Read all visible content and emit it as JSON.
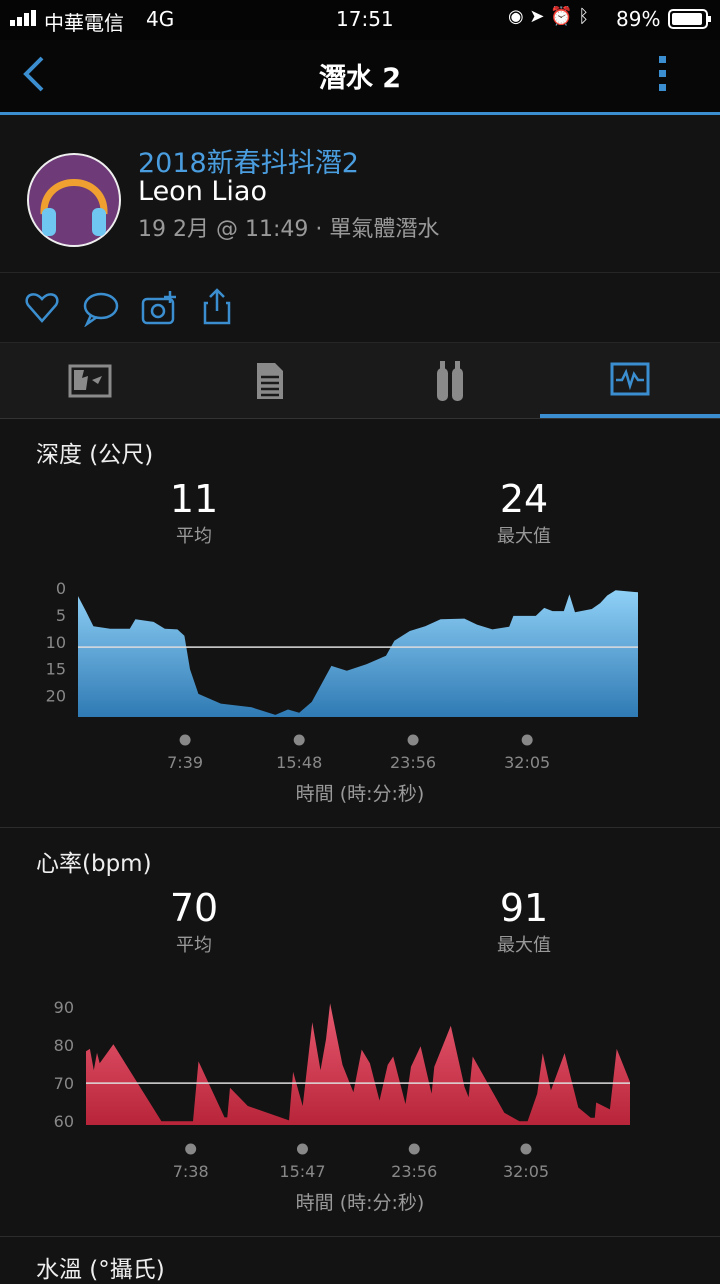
{
  "status_bar": {
    "carrier": "中華電信",
    "network": "4G",
    "time": "17:51",
    "battery": "89%"
  },
  "nav": {
    "title": "潛水 2",
    "back_icon": "chevron-left-icon",
    "menu_icon": "more-vertical-icon",
    "accent": "#3b8fd0"
  },
  "profile": {
    "activity_name": "2018新春抖抖潛2",
    "user_name": "Leon Liao",
    "meta": "19 2月 @ 11:49 · 單氣體潛水"
  },
  "actions": [
    "heart-icon",
    "comment-icon",
    "add-photo-icon",
    "share-icon"
  ],
  "tabs": [
    {
      "icon": "map-icon",
      "active": false
    },
    {
      "icon": "details-icon",
      "active": false
    },
    {
      "icon": "tanks-icon",
      "active": false
    },
    {
      "icon": "chart-icon",
      "active": true
    }
  ],
  "chart_data": [
    {
      "type": "area",
      "title": "深度 (公尺)",
      "xlabel": "時間 (時:分:秒)",
      "ylabel": "",
      "color": "#5aaee6",
      "stats": [
        {
          "value": "11",
          "label": "平均"
        },
        {
          "value": "24",
          "label": "最大值"
        }
      ],
      "average": 11,
      "y_inverted": true,
      "ylim": [
        0,
        24
      ],
      "yticks": [
        0,
        5,
        10,
        15,
        20
      ],
      "xlim": [
        "0:00",
        "40:00"
      ],
      "xticks": [
        "7:39",
        "15:48",
        "23:56",
        "32:05"
      ],
      "points": [
        [
          "0:00",
          1.5
        ],
        [
          "0:34",
          4.3
        ],
        [
          "1:06",
          7.1
        ],
        [
          "2:18",
          7.6
        ],
        [
          "3:42",
          7.6
        ],
        [
          "4:06",
          5.8
        ],
        [
          "5:24",
          6.3
        ],
        [
          "6:12",
          7.6
        ],
        [
          "7:06",
          7.7
        ],
        [
          "7:36",
          8.9
        ],
        [
          "8:00",
          15.1
        ],
        [
          "8:36",
          19.7
        ],
        [
          "10:12",
          21.5
        ],
        [
          "12:24",
          22.2
        ],
        [
          "14:06",
          23.6
        ],
        [
          "15:00",
          22.6
        ],
        [
          "15:48",
          23.2
        ],
        [
          "16:42",
          21.2
        ],
        [
          "18:06",
          14.5
        ],
        [
          "19:12",
          15.4
        ],
        [
          "20:36",
          14.2
        ],
        [
          "22:00",
          12.6
        ],
        [
          "22:36",
          9.8
        ],
        [
          "23:42",
          8.0
        ],
        [
          "24:48",
          7.1
        ],
        [
          "25:54",
          5.8
        ],
        [
          "27:36",
          5.7
        ],
        [
          "28:30",
          6.8
        ],
        [
          "29:36",
          7.7
        ],
        [
          "30:48",
          7.2
        ],
        [
          "31:06",
          5.2
        ],
        [
          "32:42",
          5.2
        ],
        [
          "33:18",
          3.7
        ],
        [
          "33:54",
          4.3
        ],
        [
          "34:42",
          4.3
        ],
        [
          "35:06",
          1.2
        ],
        [
          "35:30",
          4.5
        ],
        [
          "36:42",
          3.9
        ],
        [
          "37:18",
          2.8
        ],
        [
          "37:48",
          1.4
        ],
        [
          "38:24",
          0.4
        ],
        [
          "40:00",
          0.8
        ]
      ]
    },
    {
      "type": "area",
      "title": "心率(bpm)",
      "xlabel": "時間 (時:分:秒)",
      "ylabel": "",
      "color": "#d8334a",
      "stats": [
        {
          "value": "70",
          "label": "平均"
        },
        {
          "value": "91",
          "label": "最大值"
        }
      ],
      "average": 70,
      "y_inverted": false,
      "ylim": [
        59,
        90
      ],
      "yticks": [
        60,
        70,
        80,
        90
      ],
      "xlim": [
        "0:00",
        "39:40"
      ],
      "xticks": [
        "7:38",
        "15:47",
        "23:56",
        "32:05"
      ],
      "points": [
        [
          "0:00",
          78.4
        ],
        [
          "0:17",
          79
        ],
        [
          "0:34",
          73.4
        ],
        [
          "0:48",
          78
        ],
        [
          "1:00",
          75.2
        ],
        [
          "2:00",
          80.2
        ],
        [
          "5:30",
          60
        ],
        [
          "7:48",
          60
        ],
        [
          "8:12",
          75.7
        ],
        [
          "10:06",
          61
        ],
        [
          "10:18",
          61
        ],
        [
          "10:30",
          68.8
        ],
        [
          "11:48",
          64
        ],
        [
          "14:48",
          60.2
        ],
        [
          "15:06",
          73
        ],
        [
          "15:48",
          64
        ],
        [
          "16:30",
          86
        ],
        [
          "17:06",
          73.4
        ],
        [
          "17:30",
          81.5
        ],
        [
          "17:48",
          91
        ],
        [
          "18:42",
          74.8
        ],
        [
          "19:30",
          67.6
        ],
        [
          "20:06",
          78.8
        ],
        [
          "20:42",
          75.2
        ],
        [
          "21:24",
          65.4
        ],
        [
          "22:00",
          74.8
        ],
        [
          "22:24",
          77
        ],
        [
          "23:18",
          64.5
        ],
        [
          "23:42",
          74.3
        ],
        [
          "24:24",
          79.7
        ],
        [
          "25:12",
          67.2
        ],
        [
          "25:24",
          74.3
        ],
        [
          "26:36",
          85.1
        ],
        [
          "27:36",
          69
        ],
        [
          "27:54",
          66.3
        ],
        [
          "28:12",
          77
        ],
        [
          "30:30",
          62.2
        ],
        [
          "31:36",
          60
        ],
        [
          "32:12",
          60
        ],
        [
          "32:54",
          67.2
        ],
        [
          "33:18",
          77.9
        ],
        [
          "33:54",
          68.1
        ],
        [
          "34:54",
          77.9
        ],
        [
          "35:54",
          63.6
        ],
        [
          "36:48",
          60.9
        ],
        [
          "37:06",
          60.9
        ],
        [
          "37:12",
          64.9
        ],
        [
          "38:12",
          63.1
        ],
        [
          "38:42",
          79
        ],
        [
          "39:40",
          70.3
        ]
      ]
    }
  ],
  "next_section": {
    "title": "水溫 (°攝氏)"
  }
}
